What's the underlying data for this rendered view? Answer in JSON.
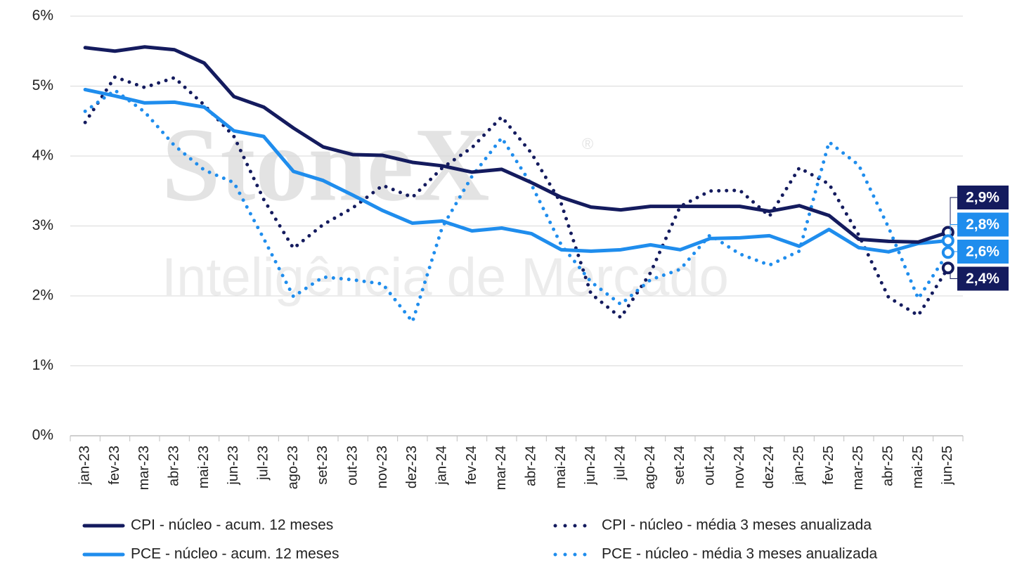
{
  "chart_data": {
    "type": "line",
    "watermark": [
      "StoneX",
      "®",
      "Inteligência de Mercado"
    ],
    "categories": [
      "jan-23",
      "fev-23",
      "mar-23",
      "abr-23",
      "mai-23",
      "jun-23",
      "jul-23",
      "ago-23",
      "set-23",
      "out-23",
      "nov-23",
      "dez-23",
      "jan-24",
      "fev-24",
      "mar-24",
      "abr-24",
      "mai-24",
      "jun-24",
      "jul-24",
      "ago-24",
      "set-24",
      "out-24",
      "nov-24",
      "dez-24",
      "jan-25",
      "fev-25",
      "mar-25",
      "abr-25",
      "mai-25",
      "jun-25"
    ],
    "ylim": [
      0,
      6
    ],
    "yticks": [
      {
        "value": 0,
        "label": "0%"
      },
      {
        "value": 1,
        "label": "1%"
      },
      {
        "value": 2,
        "label": "2%"
      },
      {
        "value": 3,
        "label": "3%"
      },
      {
        "value": 4,
        "label": "4%"
      },
      {
        "value": 5,
        "label": "5%"
      },
      {
        "value": 6,
        "label": "6%"
      }
    ],
    "grid": true,
    "series": [
      {
        "name": "CPI - núcleo - acum. 12 meses",
        "color": "#141b5e",
        "style": "solid",
        "values": [
          5.55,
          5.5,
          5.56,
          5.52,
          5.33,
          4.85,
          4.7,
          4.4,
          4.13,
          4.02,
          4.01,
          3.91,
          3.86,
          3.77,
          3.81,
          3.62,
          3.41,
          3.27,
          3.23,
          3.28,
          3.28,
          3.28,
          3.28,
          3.21,
          3.29,
          3.15,
          2.81,
          2.78,
          2.77,
          2.91
        ],
        "value_labels": [
          null,
          null,
          null,
          null,
          null,
          null,
          null,
          null,
          null,
          null,
          null,
          null,
          null,
          null,
          null,
          null,
          null,
          null,
          null,
          null,
          null,
          null,
          null,
          null,
          null,
          null,
          null,
          null,
          null,
          "2,9%"
        ]
      },
      {
        "name": "CPI - núcleo - média 3 meses anualizada",
        "color": "#141b5e",
        "style": "dotted",
        "values": [
          4.48,
          5.13,
          4.98,
          5.12,
          4.73,
          4.28,
          3.38,
          2.68,
          3.02,
          3.26,
          3.58,
          3.41,
          3.83,
          4.12,
          4.56,
          4.04,
          3.32,
          2.03,
          1.69,
          2.33,
          3.28,
          3.5,
          3.51,
          3.14,
          3.83,
          3.6,
          2.87,
          1.98,
          1.72,
          2.4
        ],
        "value_labels": [
          null,
          null,
          null,
          null,
          null,
          null,
          null,
          null,
          null,
          null,
          null,
          null,
          null,
          null,
          null,
          null,
          null,
          null,
          null,
          null,
          null,
          null,
          null,
          null,
          null,
          null,
          null,
          null,
          null,
          "2,4%"
        ]
      },
      {
        "name": "PCE - núcleo - acum. 12 meses",
        "color": "#1f8ded",
        "style": "solid",
        "values": [
          4.95,
          4.86,
          4.76,
          4.77,
          4.7,
          4.36,
          4.28,
          3.78,
          3.65,
          3.44,
          3.22,
          3.04,
          3.07,
          2.93,
          2.97,
          2.89,
          2.66,
          2.64,
          2.66,
          2.73,
          2.66,
          2.82,
          2.83,
          2.86,
          2.71,
          2.95,
          2.69,
          2.63,
          2.75,
          2.79
        ],
        "value_labels": [
          null,
          null,
          null,
          null,
          null,
          null,
          null,
          null,
          null,
          null,
          null,
          null,
          null,
          null,
          null,
          null,
          null,
          null,
          null,
          null,
          null,
          null,
          null,
          null,
          null,
          null,
          null,
          null,
          null,
          "2,8%"
        ]
      },
      {
        "name": "PCE - núcleo - média 3 meses anualizada",
        "color": "#1f8ded",
        "style": "dotted",
        "values": [
          4.64,
          4.94,
          4.63,
          4.15,
          3.8,
          3.62,
          2.82,
          1.99,
          2.27,
          2.23,
          2.17,
          1.63,
          2.98,
          3.71,
          4.26,
          3.59,
          2.73,
          2.2,
          1.88,
          2.23,
          2.38,
          2.87,
          2.6,
          2.44,
          2.64,
          4.2,
          3.87,
          2.98,
          1.96,
          2.62
        ],
        "value_labels": [
          null,
          null,
          null,
          null,
          null,
          null,
          null,
          null,
          null,
          null,
          null,
          null,
          null,
          null,
          null,
          null,
          null,
          null,
          null,
          null,
          null,
          null,
          null,
          null,
          null,
          null,
          null,
          null,
          null,
          "2,6%"
        ]
      }
    ]
  }
}
